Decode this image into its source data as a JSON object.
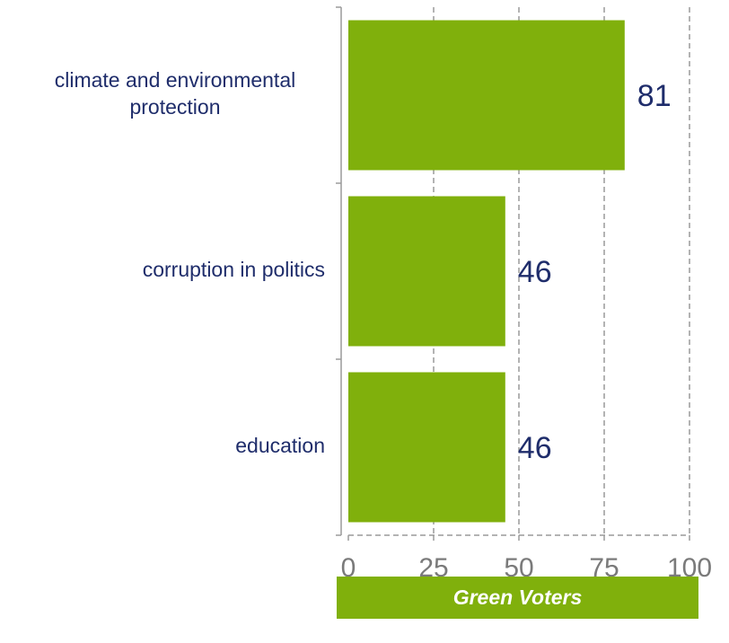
{
  "chart_data": {
    "type": "bar",
    "orientation": "horizontal",
    "categories": [
      [
        "climate and environmental",
        "protection"
      ],
      [
        "corruption in politics"
      ],
      [
        "education"
      ]
    ],
    "series": [
      {
        "name": "Green Voters",
        "values": [
          81,
          46,
          46
        ]
      }
    ],
    "data_labels": [
      "81",
      "46",
      "46"
    ],
    "xlim": [
      0,
      100
    ],
    "x_ticks": [
      0,
      25,
      50,
      75,
      100
    ],
    "x_tick_labels": [
      "0",
      "25",
      "50",
      "75",
      "100"
    ],
    "grid": "vertical dashed",
    "legend_placement": "bottom",
    "title": "",
    "xlabel": "",
    "ylabel": ""
  },
  "legend": {
    "label": "Green Voters"
  },
  "colors": {
    "bar": "#80b00c",
    "legend_bg": "#80b00c",
    "category_text": "#1f2d6b",
    "value_text": "#1f2d6b",
    "tick_text": "#7a7a7a",
    "axis": "#9a9a9a",
    "grid": "#9a9a9a"
  }
}
